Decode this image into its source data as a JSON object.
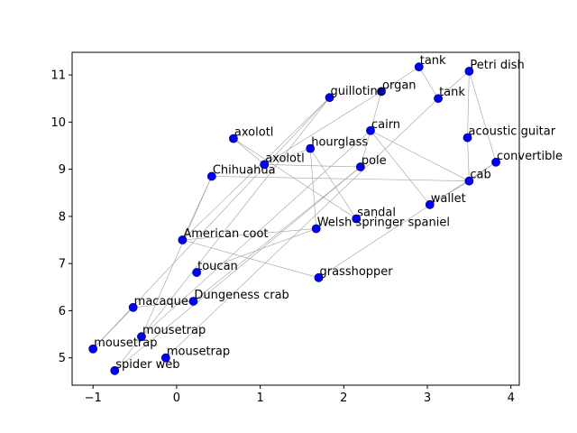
{
  "chart_data": {
    "type": "scatter",
    "title": "",
    "xlabel": "",
    "ylabel": "",
    "xlim": [
      -1.25,
      4.1
    ],
    "ylim": [
      4.42,
      11.48
    ],
    "xticks": [
      -1,
      0,
      1,
      2,
      3,
      4
    ],
    "yticks": [
      5,
      6,
      7,
      8,
      9,
      10,
      11
    ],
    "grid": false,
    "point_color": "#0000ff",
    "edge_color": "#a0a0a0",
    "points": [
      {
        "label": "tank",
        "x": 2.9,
        "y": 11.17
      },
      {
        "label": "Petri dish",
        "x": 3.5,
        "y": 11.08
      },
      {
        "label": "organ",
        "x": 2.45,
        "y": 10.65
      },
      {
        "label": "guillotine",
        "x": 1.83,
        "y": 10.52
      },
      {
        "label": "tank",
        "x": 3.13,
        "y": 10.5
      },
      {
        "label": "cairn",
        "x": 2.32,
        "y": 9.82
      },
      {
        "label": "acoustic guitar",
        "x": 3.48,
        "y": 9.67
      },
      {
        "label": "axolotl",
        "x": 0.68,
        "y": 9.65
      },
      {
        "label": "hourglass",
        "x": 1.6,
        "y": 9.44
      },
      {
        "label": "convertible",
        "x": 3.82,
        "y": 9.15
      },
      {
        "label": "axolotl",
        "x": 1.05,
        "y": 9.1
      },
      {
        "label": "pole",
        "x": 2.2,
        "y": 9.05
      },
      {
        "label": "Chihuahua",
        "x": 0.42,
        "y": 8.85
      },
      {
        "label": "cab",
        "x": 3.5,
        "y": 8.75
      },
      {
        "label": "wallet",
        "x": 3.03,
        "y": 8.25
      },
      {
        "label": "sandal",
        "x": 2.15,
        "y": 7.95
      },
      {
        "label": "Welsh springer spaniel",
        "x": 1.67,
        "y": 7.74
      },
      {
        "label": "American coot",
        "x": 0.07,
        "y": 7.5
      },
      {
        "label": "toucan",
        "x": 0.24,
        "y": 6.81
      },
      {
        "label": "grasshopper",
        "x": 1.7,
        "y": 6.7
      },
      {
        "label": "Dungeness crab",
        "x": 0.2,
        "y": 6.2
      },
      {
        "label": "macaque",
        "x": -0.52,
        "y": 6.07
      },
      {
        "label": "mousetrap",
        "x": -0.42,
        "y": 5.45
      },
      {
        "label": "mousetrap",
        "x": -1.0,
        "y": 5.19
      },
      {
        "label": "mousetrap",
        "x": -0.13,
        "y": 5.0
      },
      {
        "label": "spider web",
        "x": -0.74,
        "y": 4.73
      }
    ],
    "edges": [
      [
        0,
        2
      ],
      [
        0,
        4
      ],
      [
        1,
        4
      ],
      [
        1,
        6
      ],
      [
        1,
        9
      ],
      [
        6,
        13
      ],
      [
        9,
        13
      ],
      [
        13,
        12
      ],
      [
        13,
        14
      ],
      [
        13,
        5
      ],
      [
        5,
        22
      ],
      [
        2,
        11
      ],
      [
        2,
        10
      ],
      [
        3,
        17
      ],
      [
        3,
        23
      ],
      [
        4,
        24
      ],
      [
        8,
        16
      ],
      [
        8,
        15
      ],
      [
        8,
        10
      ],
      [
        7,
        15
      ],
      [
        7,
        10
      ],
      [
        11,
        20
      ],
      [
        11,
        25
      ],
      [
        14,
        5
      ],
      [
        16,
        17
      ],
      [
        16,
        18
      ],
      [
        17,
        19
      ],
      [
        17,
        12
      ],
      [
        19,
        9
      ],
      [
        20,
        21
      ],
      [
        21,
        23
      ],
      [
        12,
        22
      ],
      [
        10,
        11
      ],
      [
        3,
        25
      ]
    ]
  }
}
